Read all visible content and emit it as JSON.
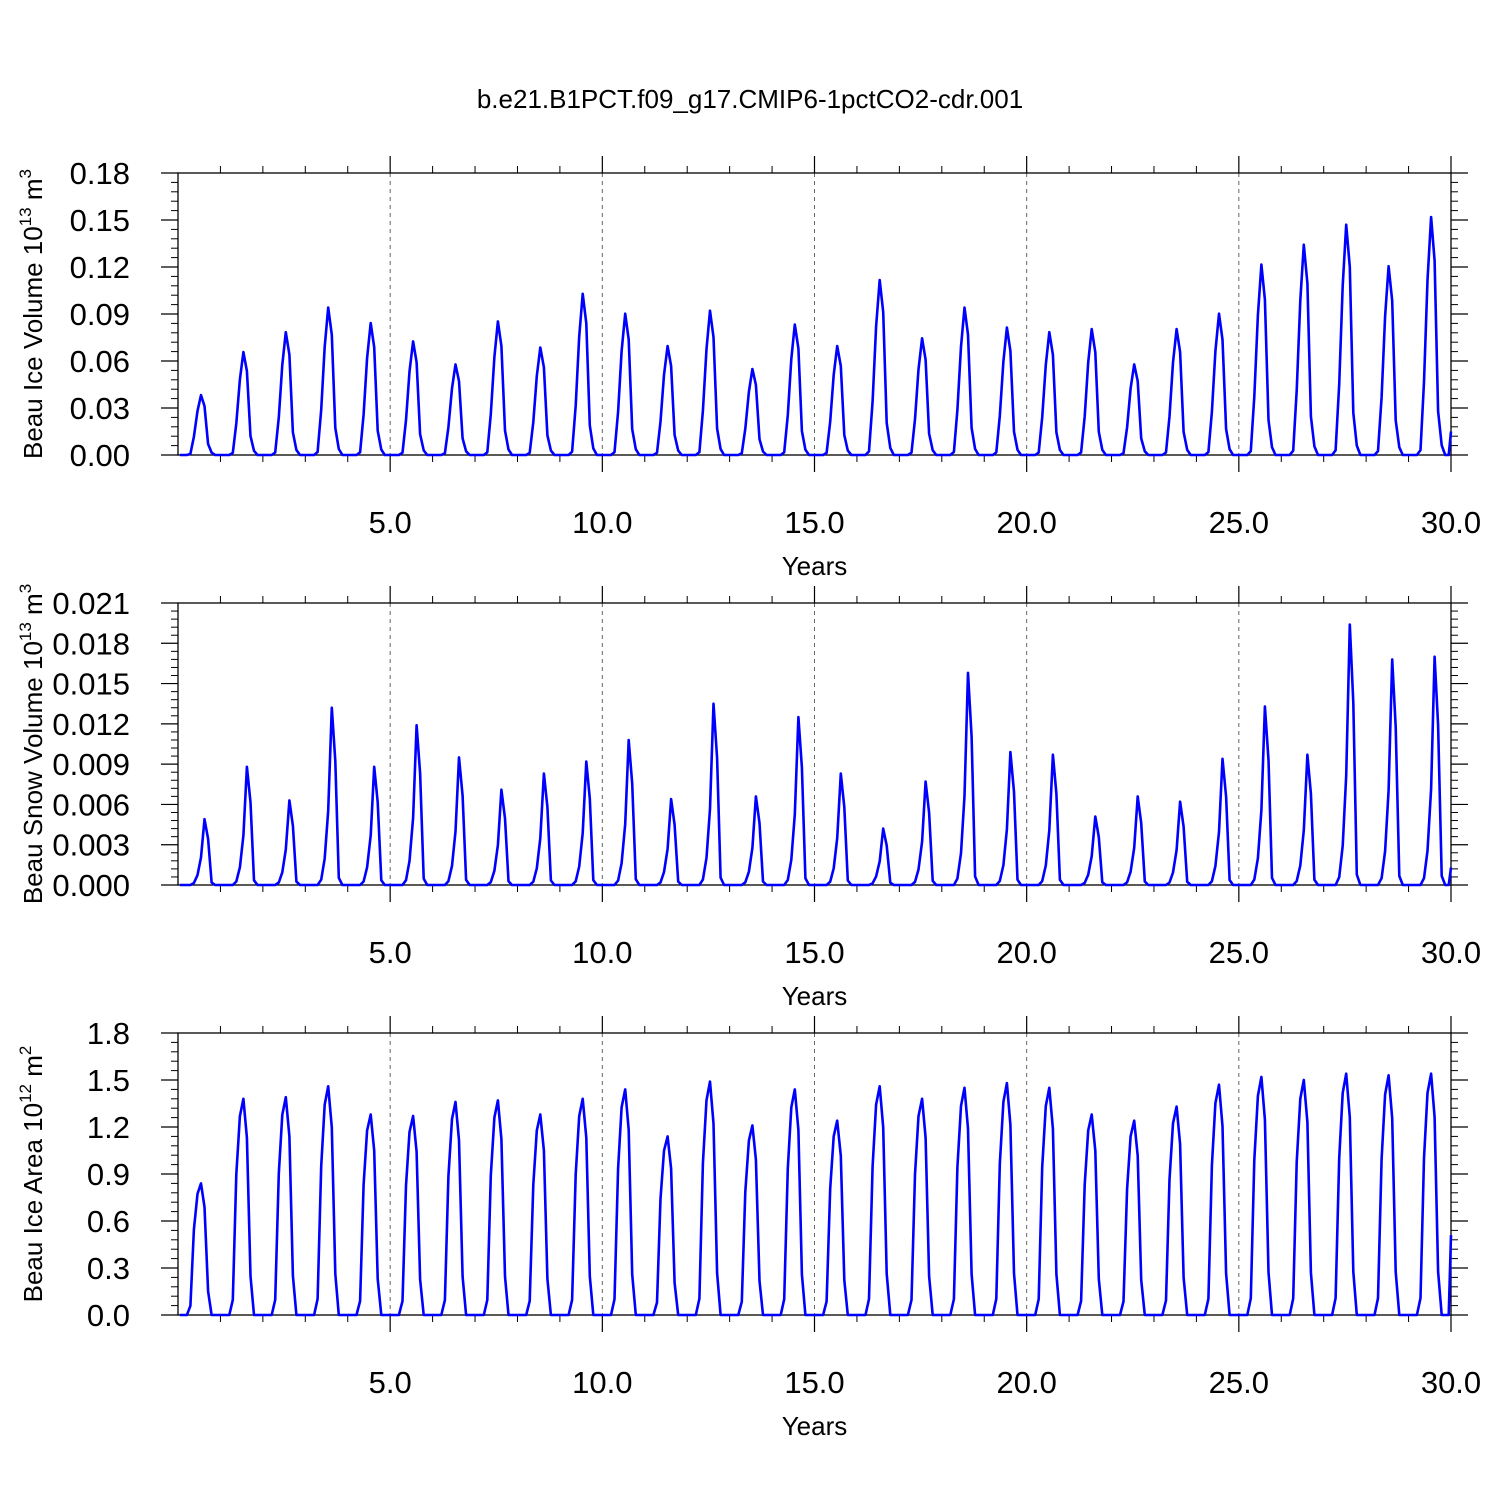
{
  "figure": {
    "title": "b.e21.B1PCT.f09_g17.CMIP6-1pctCO2-cdr.001"
  },
  "colors": {
    "line": "#0000ff",
    "axis": "#000000",
    "grid": "#666666",
    "background": "#ffffff"
  },
  "chart_data": [
    {
      "type": "line",
      "title": "",
      "xlabel": "Years",
      "ylabel": "Beau Ice Volume 10",
      "ylabel_exp": "13",
      "ylabel_unit": " m",
      "ylabel_unit_exp": "3",
      "xlim": [
        0,
        30
      ],
      "ylim": [
        0,
        0.18
      ],
      "xticks": [
        5,
        10,
        15,
        20,
        25,
        30
      ],
      "xtick_labels": [
        "5.0",
        "10.0",
        "15.0",
        "20.0",
        "25.0",
        "30.0"
      ],
      "yticks": [
        0,
        0.03,
        0.06,
        0.09,
        0.12,
        0.15,
        0.18
      ],
      "ytick_labels": [
        "0.00",
        "0.03",
        "0.06",
        "0.09",
        "0.12",
        "0.15",
        "0.18"
      ],
      "grid": "vertical dashed lines at major x ticks",
      "legend": "none",
      "series": [
        {
          "x_start": 0.042,
          "x_step": 0.0833,
          "peaks": [
            0.039,
            0.067,
            0.08,
            0.096,
            0.086,
            0.074,
            0.059,
            0.087,
            0.07,
            0.105,
            0.092,
            0.071,
            0.094,
            0.056,
            0.085,
            0.071,
            0.114,
            0.076,
            0.096,
            0.083,
            0.08,
            0.082,
            0.059,
            0.082,
            0.092,
            0.124,
            0.137,
            0.15,
            0.123,
            0.155
          ],
          "seasonal_shape": [
            0.0,
            0.0,
            0.0,
            0.02,
            0.3,
            0.72,
            0.98,
            0.8,
            0.18,
            0.04,
            0.0,
            0.0
          ],
          "end_value": 0.015
        }
      ]
    },
    {
      "type": "line",
      "title": "",
      "xlabel": "Years",
      "ylabel": "Beau Snow Volume 10",
      "ylabel_exp": "13",
      "ylabel_unit": " m",
      "ylabel_unit_exp": "3",
      "xlim": [
        0,
        30
      ],
      "ylim": [
        0,
        0.021
      ],
      "xticks": [
        5,
        10,
        15,
        20,
        25,
        30
      ],
      "xtick_labels": [
        "5.0",
        "10.0",
        "15.0",
        "20.0",
        "25.0",
        "30.0"
      ],
      "yticks": [
        0,
        0.003,
        0.006,
        0.009,
        0.012,
        0.015,
        0.018,
        0.021
      ],
      "ytick_labels": [
        "0.000",
        "0.003",
        "0.006",
        "0.009",
        "0.012",
        "0.015",
        "0.018",
        "0.021"
      ],
      "grid": "vertical dashed lines at major x ticks",
      "legend": "none",
      "series": [
        {
          "x_start": 0.042,
          "x_step": 0.0833,
          "peaks": [
            0.0049,
            0.0088,
            0.0063,
            0.0132,
            0.0088,
            0.0119,
            0.0095,
            0.0071,
            0.0083,
            0.0092,
            0.0108,
            0.0064,
            0.0135,
            0.0066,
            0.0125,
            0.0083,
            0.0042,
            0.0077,
            0.0158,
            0.0099,
            0.0097,
            0.0051,
            0.0066,
            0.0062,
            0.0094,
            0.0133,
            0.0097,
            0.0194,
            0.0168,
            0.017
          ],
          "seasonal_shape": [
            0.0,
            0.0,
            0.0,
            0.0,
            0.03,
            0.15,
            0.42,
            1.0,
            0.7,
            0.04,
            0.0,
            0.0
          ],
          "end_value": 0.0013
        }
      ]
    },
    {
      "type": "line",
      "title": "",
      "xlabel": "Years",
      "ylabel": "Beau Ice Area 10",
      "ylabel_exp": "12",
      "ylabel_unit": " m",
      "ylabel_unit_exp": "2",
      "xlim": [
        0,
        30
      ],
      "ylim": [
        0,
        1.8
      ],
      "xticks": [
        5,
        10,
        15,
        20,
        25,
        30
      ],
      "xtick_labels": [
        "5.0",
        "10.0",
        "15.0",
        "20.0",
        "25.0",
        "30.0"
      ],
      "yticks": [
        0,
        0.3,
        0.6,
        0.9,
        1.2,
        1.5,
        1.8
      ],
      "ytick_labels": [
        "0.0",
        "0.3",
        "0.6",
        "0.9",
        "1.2",
        "1.5",
        "1.8"
      ],
      "grid": "vertical dashed lines at major x ticks",
      "legend": "none",
      "series": [
        {
          "x_start": 0.042,
          "x_step": 0.0833,
          "peaks": [
            0.84,
            1.38,
            1.39,
            1.46,
            1.28,
            1.27,
            1.36,
            1.37,
            1.28,
            1.38,
            1.44,
            1.14,
            1.49,
            1.21,
            1.44,
            1.24,
            1.46,
            1.38,
            1.45,
            1.48,
            1.45,
            1.28,
            1.24,
            1.33,
            1.47,
            1.52,
            1.5,
            1.54,
            1.53,
            1.54
          ],
          "seasonal_shape": [
            0.0,
            0.0,
            0.0,
            0.07,
            0.65,
            0.92,
            1.0,
            0.82,
            0.18,
            0.0,
            0.0,
            0.0
          ],
          "end_value": 0.51
        }
      ]
    }
  ]
}
